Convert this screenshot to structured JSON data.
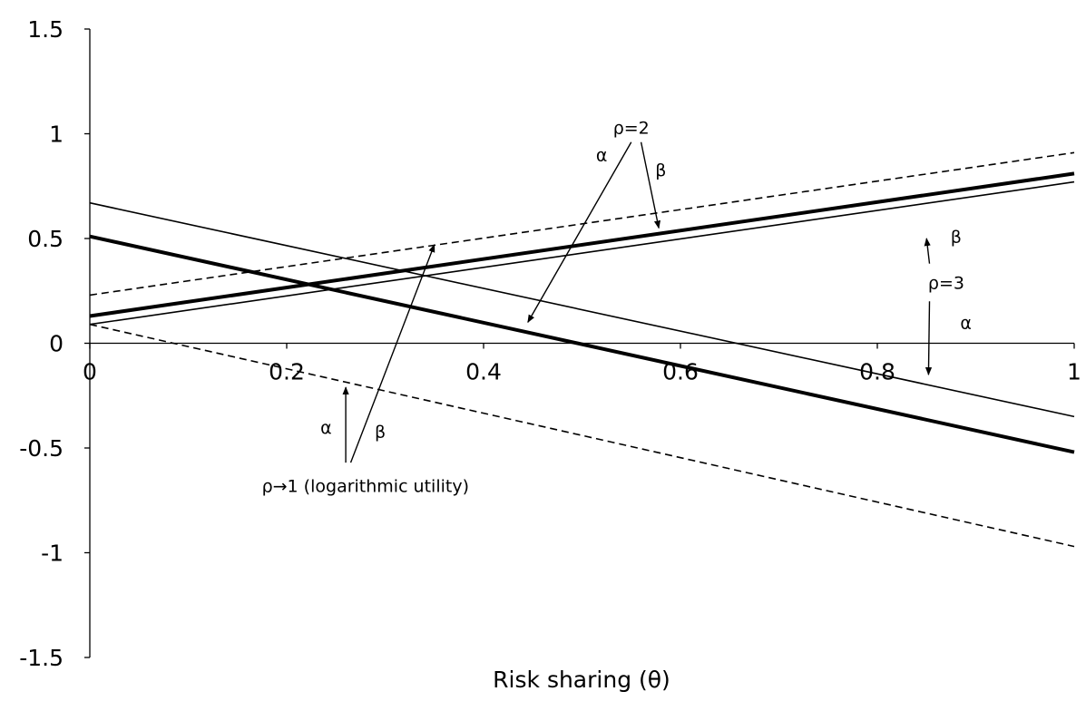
{
  "chart_data": {
    "type": "line",
    "title": "",
    "xlabel": "Risk sharing (θ)",
    "ylabel": "",
    "xlim": [
      0,
      1
    ],
    "ylim": [
      -1.5,
      1.5
    ],
    "x_ticks": [
      "0",
      "0.2",
      "0.4",
      "0.6",
      "0.8",
      "1"
    ],
    "y_ticks": [
      "1.5",
      "1",
      "0.5",
      "0",
      "-0.5",
      "-1",
      "-1.5"
    ],
    "x_tick_values": [
      0,
      0.2,
      0.4,
      0.6,
      0.8,
      1
    ],
    "y_tick_values": [
      1.5,
      1,
      0.5,
      0,
      -0.5,
      -1,
      -1.5
    ],
    "grid": false,
    "legend": "none",
    "series": [
      {
        "id": "rho1-alpha",
        "style": "dashed",
        "weight": "thin",
        "x": [
          0,
          1
        ],
        "y": [
          0.09,
          -0.97
        ]
      },
      {
        "id": "rho1-beta",
        "style": "dashed",
        "weight": "thin",
        "x": [
          0,
          1
        ],
        "y": [
          0.23,
          0.91
        ]
      },
      {
        "id": "rho2-alpha",
        "style": "solid",
        "weight": "thick",
        "x": [
          0,
          1
        ],
        "y": [
          0.51,
          -0.52
        ]
      },
      {
        "id": "rho2-beta",
        "style": "solid",
        "weight": "thick",
        "x": [
          0,
          1
        ],
        "y": [
          0.13,
          0.81
        ]
      },
      {
        "id": "rho3-alpha",
        "style": "solid",
        "weight": "thin",
        "x": [
          0,
          1
        ],
        "y": [
          0.67,
          -0.35
        ]
      },
      {
        "id": "rho3-beta",
        "style": "solid",
        "weight": "thin",
        "x": [
          0,
          1
        ],
        "y": [
          0.09,
          0.77
        ]
      }
    ],
    "annotations": {
      "rho2": {
        "label": "ρ=2",
        "label_at": [
          0.55,
          1.03
        ],
        "alpha_label": "α",
        "alpha_label_at": [
          0.52,
          0.9
        ],
        "beta_label": "β",
        "beta_label_at": [
          0.58,
          0.83
        ],
        "arrows": [
          {
            "from": [
              0.55,
              0.96
            ],
            "to": [
              0.445,
              0.1
            ]
          },
          {
            "from": [
              0.56,
              0.96
            ],
            "to": [
              0.578,
              0.55
            ]
          }
        ]
      },
      "rho3": {
        "label": "ρ=3",
        "label_at": [
          0.87,
          0.29
        ],
        "alpha_label": "α",
        "alpha_label_at": [
          0.89,
          0.1
        ],
        "beta_label": "β",
        "beta_label_at": [
          0.88,
          0.51
        ],
        "arrows": [
          {
            "from": [
              0.853,
              0.38
            ],
            "to": [
              0.85,
              0.5
            ]
          },
          {
            "from": [
              0.853,
              0.2
            ],
            "to": [
              0.852,
              -0.15
            ]
          }
        ]
      },
      "rho1": {
        "label": "ρ→1 (logarithmic utility)",
        "label_at": [
          0.28,
          -0.68
        ],
        "alpha_label": "α",
        "alpha_label_at": [
          0.24,
          -0.4
        ],
        "beta_label": "β",
        "beta_label_at": [
          0.295,
          -0.42
        ],
        "arrows": [
          {
            "from": [
              0.26,
              -0.57
            ],
            "to": [
              0.26,
              -0.21
            ]
          },
          {
            "from": [
              0.265,
              -0.57
            ],
            "to": [
              0.35,
              0.47
            ]
          }
        ]
      }
    }
  }
}
